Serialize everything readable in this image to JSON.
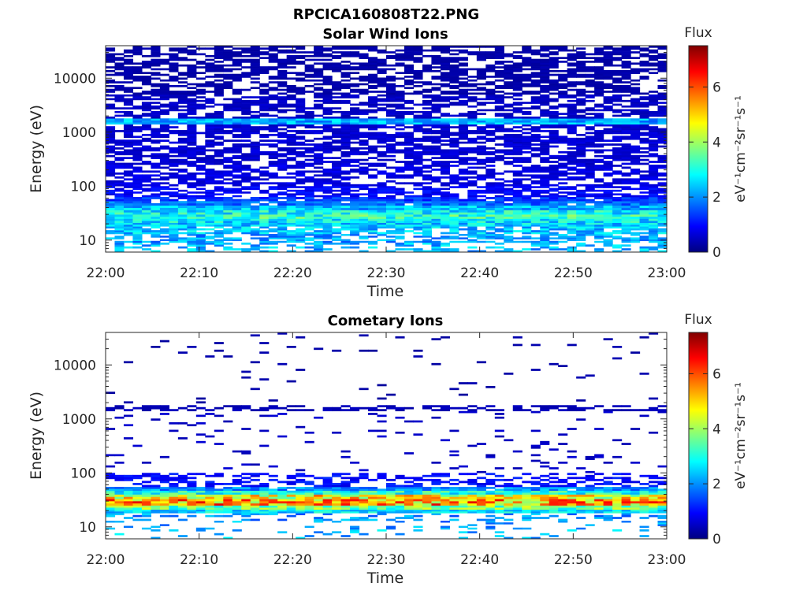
{
  "figure": {
    "filename": "RPCICA160808T22.PNG"
  },
  "chart_data": [
    {
      "type": "heatmap",
      "title": "Solar Wind Ions",
      "xlabel": "Time",
      "ylabel": "Energy (eV)",
      "x_ticks": [
        "22:00",
        "22:10",
        "22:20",
        "22:30",
        "22:40",
        "22:50",
        "23:00"
      ],
      "y_ticks": [
        "10",
        "100",
        "1000",
        "10000"
      ],
      "y_scale": "log",
      "ylim": [
        6,
        40000
      ],
      "colorbar": {
        "title": "Flux",
        "label": "eV⁻¹cm⁻²sr⁻¹s⁻¹",
        "ticks": [
          "0",
          "2",
          "4",
          "6"
        ],
        "range": [
          0,
          7.5
        ],
        "colormap": "jet"
      },
      "bands": [
        {
          "e_low": 6,
          "e_high": 9,
          "level": 2.3,
          "fill": 0.45
        },
        {
          "e_low": 9,
          "e_high": 13,
          "level": 2.1,
          "fill": 0.6
        },
        {
          "e_low": 13,
          "e_high": 18,
          "level": 2.4,
          "fill": 0.75
        },
        {
          "e_low": 18,
          "e_high": 21,
          "level": 2.5,
          "fill": 1.0
        },
        {
          "e_low": 21,
          "e_high": 25,
          "level": 2.7,
          "fill": 1.0
        },
        {
          "e_low": 25,
          "e_high": 30,
          "level": 3.1,
          "fill": 1.0
        },
        {
          "e_low": 30,
          "e_high": 36,
          "level": 2.8,
          "fill": 1.0
        },
        {
          "e_low": 36,
          "e_high": 44,
          "level": 2.3,
          "fill": 1.0
        },
        {
          "e_low": 44,
          "e_high": 53,
          "level": 1.7,
          "fill": 0.95
        },
        {
          "e_low": 53,
          "e_high": 63,
          "level": 1.3,
          "fill": 0.85
        },
        {
          "e_low": 63,
          "e_high": 100,
          "level": 0.9,
          "fill": 0.65
        },
        {
          "e_low": 100,
          "e_high": 250,
          "level": 0.7,
          "fill": 0.6
        },
        {
          "e_low": 250,
          "e_high": 1400,
          "level": 0.6,
          "fill": 0.65
        },
        {
          "e_low": 1400,
          "e_high": 1800,
          "level": 2.2,
          "fill": 1.0
        },
        {
          "e_low": 1800,
          "e_high": 5000,
          "level": 0.5,
          "fill": 0.6
        },
        {
          "e_low": 5000,
          "e_high": 40000,
          "level": 0.3,
          "fill": 0.6
        }
      ]
    },
    {
      "type": "heatmap",
      "title": "Cometary Ions",
      "xlabel": "Time",
      "ylabel": "Energy (eV)",
      "x_ticks": [
        "22:00",
        "22:10",
        "22:20",
        "22:30",
        "22:40",
        "22:50",
        "23:00"
      ],
      "y_ticks": [
        "10",
        "100",
        "1000",
        "10000"
      ],
      "y_scale": "log",
      "ylim": [
        6,
        40000
      ],
      "colorbar": {
        "title": "Flux",
        "label": "eV⁻¹cm⁻²sr⁻¹s⁻¹",
        "ticks": [
          "0",
          "2",
          "4",
          "6"
        ],
        "range": [
          0,
          7.5
        ],
        "colormap": "jet"
      },
      "bands": [
        {
          "e_low": 6,
          "e_high": 9,
          "level": 2.3,
          "fill": 0.1
        },
        {
          "e_low": 9,
          "e_high": 13,
          "level": 2.1,
          "fill": 0.15
        },
        {
          "e_low": 13,
          "e_high": 18,
          "level": 2.0,
          "fill": 0.3
        },
        {
          "e_low": 18,
          "e_high": 21,
          "level": 2.6,
          "fill": 1.0
        },
        {
          "e_low": 21,
          "e_high": 25,
          "level": 3.6,
          "fill": 1.0
        },
        {
          "e_low": 25,
          "e_high": 33,
          "level": 5.3,
          "fill": 1.0
        },
        {
          "e_low": 33,
          "e_high": 40,
          "level": 4.6,
          "fill": 1.0
        },
        {
          "e_low": 40,
          "e_high": 47,
          "level": 3.0,
          "fill": 1.0
        },
        {
          "e_low": 47,
          "e_high": 55,
          "level": 2.0,
          "fill": 0.95
        },
        {
          "e_low": 55,
          "e_high": 100,
          "level": 1.0,
          "fill": 0.45
        },
        {
          "e_low": 100,
          "e_high": 1400,
          "level": 0.5,
          "fill": 0.06
        },
        {
          "e_low": 1400,
          "e_high": 1800,
          "level": 0.4,
          "fill": 0.55
        },
        {
          "e_low": 1800,
          "e_high": 40000,
          "level": 0.3,
          "fill": 0.025
        }
      ]
    }
  ]
}
